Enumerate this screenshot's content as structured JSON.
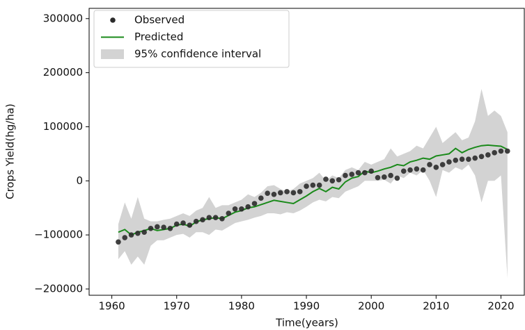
{
  "chart_data": {
    "type": "line",
    "xlabel": "Time(years)",
    "ylabel": "Crops Yield(hg/ha)",
    "x": [
      1961,
      1962,
      1963,
      1964,
      1965,
      1966,
      1967,
      1968,
      1969,
      1970,
      1971,
      1972,
      1973,
      1974,
      1975,
      1976,
      1977,
      1978,
      1979,
      1980,
      1981,
      1982,
      1983,
      1984,
      1985,
      1986,
      1987,
      1988,
      1989,
      1990,
      1991,
      1992,
      1993,
      1994,
      1995,
      1996,
      1997,
      1998,
      1999,
      2000,
      2001,
      2002,
      2003,
      2004,
      2005,
      2006,
      2007,
      2008,
      2009,
      2010,
      2011,
      2012,
      2013,
      2014,
      2015,
      2016,
      2017,
      2018,
      2019,
      2020,
      2021
    ],
    "series": [
      {
        "name": "Observed",
        "type": "scatter",
        "color": "#2b2b2b",
        "values": [
          -113000,
          -105000,
          -100000,
          -97000,
          -95000,
          -88000,
          -85000,
          -86000,
          -88000,
          -80000,
          -78000,
          -82000,
          -75000,
          -72000,
          -68000,
          -68000,
          -70000,
          -60000,
          -52000,
          -52000,
          -48000,
          -42000,
          -32000,
          -23000,
          -25000,
          -22000,
          -20000,
          -22000,
          -20000,
          -10000,
          -8000,
          -8000,
          3000,
          0,
          2000,
          10000,
          12000,
          15000,
          15000,
          18000,
          6000,
          7000,
          10000,
          5000,
          18000,
          20000,
          22000,
          20000,
          30000,
          25000,
          30000,
          35000,
          38000,
          40000,
          40000,
          42000,
          45000,
          48000,
          52000,
          55000,
          55000
        ]
      },
      {
        "name": "Predicted",
        "type": "line",
        "color": "#1a8a1a",
        "values": [
          -95000,
          -90000,
          -100000,
          -95000,
          -92000,
          -88000,
          -92000,
          -90000,
          -88000,
          -82000,
          -80000,
          -84000,
          -76000,
          -72000,
          -70000,
          -68000,
          -70000,
          -64000,
          -58000,
          -55000,
          -50000,
          -48000,
          -44000,
          -40000,
          -36000,
          -38000,
          -40000,
          -42000,
          -35000,
          -28000,
          -20000,
          -14000,
          -20000,
          -12000,
          -15000,
          -2000,
          5000,
          8000,
          18000,
          15000,
          18000,
          22000,
          25000,
          30000,
          28000,
          35000,
          38000,
          42000,
          40000,
          46000,
          48000,
          50000,
          60000,
          52000,
          58000,
          62000,
          65000,
          66000,
          65000,
          64000,
          58000
        ]
      },
      {
        "name": "95% confidence interval",
        "type": "band",
        "color": "#d3d3d3",
        "upper": [
          -80000,
          -40000,
          -70000,
          -30000,
          -70000,
          -75000,
          -75000,
          -72000,
          -70000,
          -65000,
          -60000,
          -65000,
          -55000,
          -50000,
          -30000,
          -50000,
          -45000,
          -45000,
          -40000,
          -35000,
          -25000,
          -30000,
          -22000,
          -10000,
          -8000,
          -15000,
          -20000,
          -15000,
          -5000,
          0,
          5000,
          15000,
          0,
          10000,
          5000,
          20000,
          25000,
          20000,
          35000,
          30000,
          35000,
          40000,
          60000,
          45000,
          50000,
          55000,
          65000,
          60000,
          80000,
          100000,
          70000,
          80000,
          90000,
          75000,
          80000,
          110000,
          170000,
          120000,
          130000,
          120000,
          90000
        ],
        "lower": [
          -145000,
          -130000,
          -155000,
          -140000,
          -155000,
          -120000,
          -110000,
          -110000,
          -105000,
          -100000,
          -98000,
          -105000,
          -95000,
          -95000,
          -100000,
          -90000,
          -92000,
          -85000,
          -78000,
          -75000,
          -72000,
          -68000,
          -65000,
          -60000,
          -60000,
          -62000,
          -58000,
          -60000,
          -55000,
          -48000,
          -40000,
          -35000,
          -38000,
          -30000,
          -32000,
          -20000,
          -15000,
          -10000,
          0,
          0,
          0,
          2000,
          -5000,
          10000,
          5000,
          15000,
          10000,
          20000,
          0,
          -30000,
          20000,
          15000,
          25000,
          20000,
          30000,
          10000,
          -40000,
          0,
          0,
          10000,
          -180000
        ]
      }
    ],
    "xlim": [
      1956.5,
      2023.6
    ],
    "ylim": [
      -211600,
      319000
    ],
    "xticks": [
      1960,
      1970,
      1980,
      1990,
      2000,
      2010,
      2020
    ],
    "yticks": [
      {
        "value": -200000,
        "label": "−200000"
      },
      {
        "value": -100000,
        "label": "−100000"
      },
      0,
      100000,
      200000,
      300000
    ],
    "legend": "upper left"
  }
}
